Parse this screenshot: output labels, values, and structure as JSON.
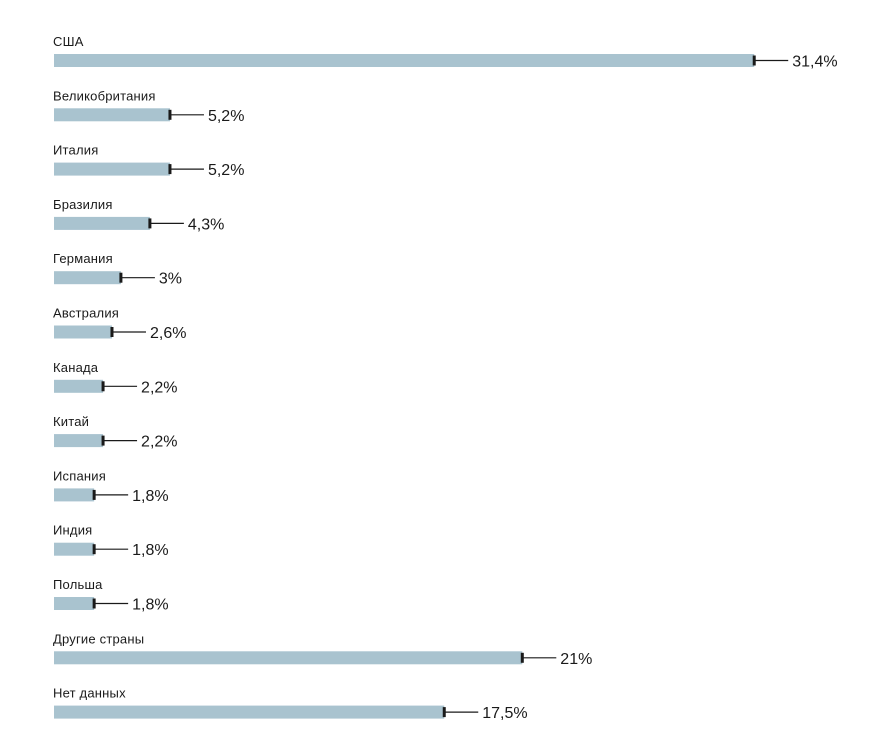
{
  "chart_data": {
    "type": "bar",
    "orientation": "horizontal",
    "unit": "%",
    "bar_color": "#a9c3cf",
    "categories": [
      "США",
      "Великобритания",
      "Италия",
      "Бразилия",
      "Германия",
      "Австралия",
      "Канада",
      "Китай",
      "Испания",
      "Индия",
      "Польша",
      "Другие страны",
      "Нет данных"
    ],
    "values": [
      31.4,
      5.2,
      5.2,
      4.3,
      3,
      2.6,
      2.2,
      2.2,
      1.8,
      1.8,
      1.8,
      21,
      17.5
    ],
    "value_labels": [
      "31,4%",
      "5,2%",
      "5,2%",
      "4,3%",
      "3%",
      "2,6%",
      "2,2%",
      "2,2%",
      "1,8%",
      "1,8%",
      "1,8%",
      "21%",
      "17,5%"
    ]
  }
}
